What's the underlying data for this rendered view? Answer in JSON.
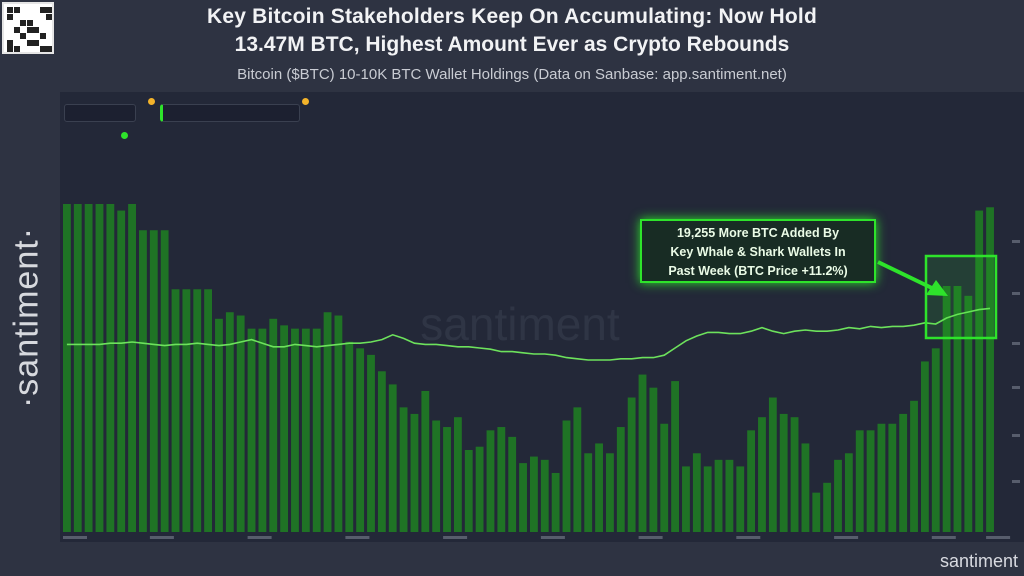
{
  "header": {
    "title_line1": "Key Bitcoin Stakeholders Keep On Accumulating: Now Hold",
    "title_line2": "13.47M BTC, Highest Amount Ever as Crypto Rebounds",
    "subtitle": "Bitcoin ($BTC) 10-10K BTC Wallet Holdings (Data on Sanbase: app.santiment.net)"
  },
  "brand": {
    "side_logo": "·santiment·",
    "footer_logo": "santiment",
    "watermark": "santiment"
  },
  "annotation": {
    "line1": "19,255 More BTC Added By",
    "line2": "Key Whale & Shark Wallets In",
    "line3": "Past Week (BTC Price +11.2%)"
  },
  "colors": {
    "background": "#2e3342",
    "panel": "#232838",
    "bars": "#1f7a24",
    "line": "#6de25c",
    "highlight": "#2ee32b"
  },
  "chart_data": {
    "type": "bar",
    "title": "",
    "xlabel": "",
    "ylabel": "",
    "grid": false,
    "legend": "top-left",
    "series": [
      {
        "name": "",
        "kind": "bar",
        "values": [
          100,
          100,
          100,
          100,
          100,
          98,
          100,
          92,
          92,
          92,
          74,
          74,
          74,
          74,
          65,
          67,
          66,
          62,
          62,
          65,
          63,
          62,
          62,
          62,
          67,
          66,
          58,
          56,
          54,
          49,
          45,
          38,
          36,
          43,
          34,
          32,
          35,
          25,
          26,
          31,
          32,
          29,
          21,
          23,
          22,
          18,
          34,
          38,
          24,
          27,
          24,
          32,
          41,
          48,
          44,
          33,
          46,
          20,
          24,
          20,
          22,
          22,
          20,
          31,
          35,
          41,
          36,
          35,
          27,
          12,
          15,
          22,
          24,
          31,
          31,
          33,
          33,
          36,
          40,
          52,
          56,
          75,
          75,
          72,
          98,
          99
        ]
      },
      {
        "name": "",
        "kind": "line",
        "values": [
          63,
          63,
          63,
          63,
          64,
          64,
          65,
          64,
          63,
          62,
          63,
          63,
          64,
          63,
          62,
          63,
          65,
          67,
          64,
          61,
          61,
          63,
          62,
          61,
          62,
          63,
          64,
          64,
          65,
          67,
          71,
          68,
          64,
          63,
          63,
          62,
          61,
          61,
          60,
          59,
          57,
          57,
          56,
          55,
          55,
          54,
          52,
          51,
          50,
          50,
          50,
          51,
          51,
          52,
          52,
          54,
          60,
          66,
          70,
          73,
          73,
          72,
          72,
          74,
          77,
          74,
          72,
          74,
          75,
          74,
          74,
          75,
          77,
          76,
          78,
          77,
          78,
          78,
          79,
          81,
          80,
          85,
          88,
          90,
          92,
          93
        ]
      }
    ]
  }
}
